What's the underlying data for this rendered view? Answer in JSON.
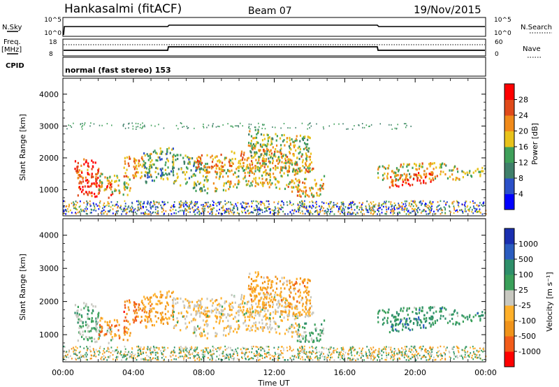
{
  "header": {
    "station": "Hankasalmi (fitACF)",
    "beam": "Beam 07",
    "date": "19/Nov/2015"
  },
  "top_panels": {
    "nsky_label": "N.Sky",
    "nsky_ticks": [
      "10^5",
      "10^0"
    ],
    "nsearch_label": "N.Search",
    "nsearch_ticks": [
      "10^5",
      "10^0"
    ],
    "freq_label": "Freq.",
    "freq_unit": "[MHz]",
    "freq_ticks": [
      "18",
      "8"
    ],
    "nave_label": "Nave",
    "nave_ticks": [
      "60",
      "0"
    ],
    "cpid_label": "CPID",
    "cpid_text": "normal (fast stereo) 153"
  },
  "chart_data": [
    {
      "type": "heatmap",
      "name": "power",
      "ylabel": "Slant Range [km]",
      "yticks": [
        "4000",
        "3000",
        "2000",
        "1000"
      ],
      "ylim": [
        180,
        4500
      ],
      "colorbar_label": "Power [dB]",
      "colorbar_ticks": [
        "28",
        "24",
        "20",
        "16",
        "12",
        "8",
        "4"
      ],
      "colorbar_colors": [
        "#0000ff",
        "#2b50c8",
        "#3f7f6a",
        "#3fa05a",
        "#e8c21b",
        "#f08a1a",
        "#e04a1a",
        "#ff0000"
      ]
    },
    {
      "type": "heatmap",
      "name": "velocity",
      "ylabel": "Slant Range [km]",
      "yticks": [
        "4000",
        "3000",
        "2000",
        "1000"
      ],
      "ylim": [
        180,
        4500
      ],
      "colorbar_label": "Velocity [m s⁻¹]",
      "colorbar_ticks": [
        "1000",
        "500",
        "100",
        "25",
        "-25",
        "-100",
        "-500",
        "-1000"
      ],
      "colorbar_colors": [
        "#ff0000",
        "#f25c1a",
        "#f0931a",
        "#ffb02a",
        "#c8c8c0",
        "#3aa05a",
        "#2e8f6a",
        "#2a5cbf",
        "#1a2fb0"
      ]
    }
  ],
  "xaxis": {
    "ticks": [
      "00:00",
      "04:00",
      "08:00",
      "12:00",
      "16:00",
      "20:00",
      "00:00"
    ],
    "label": "Time UT"
  }
}
